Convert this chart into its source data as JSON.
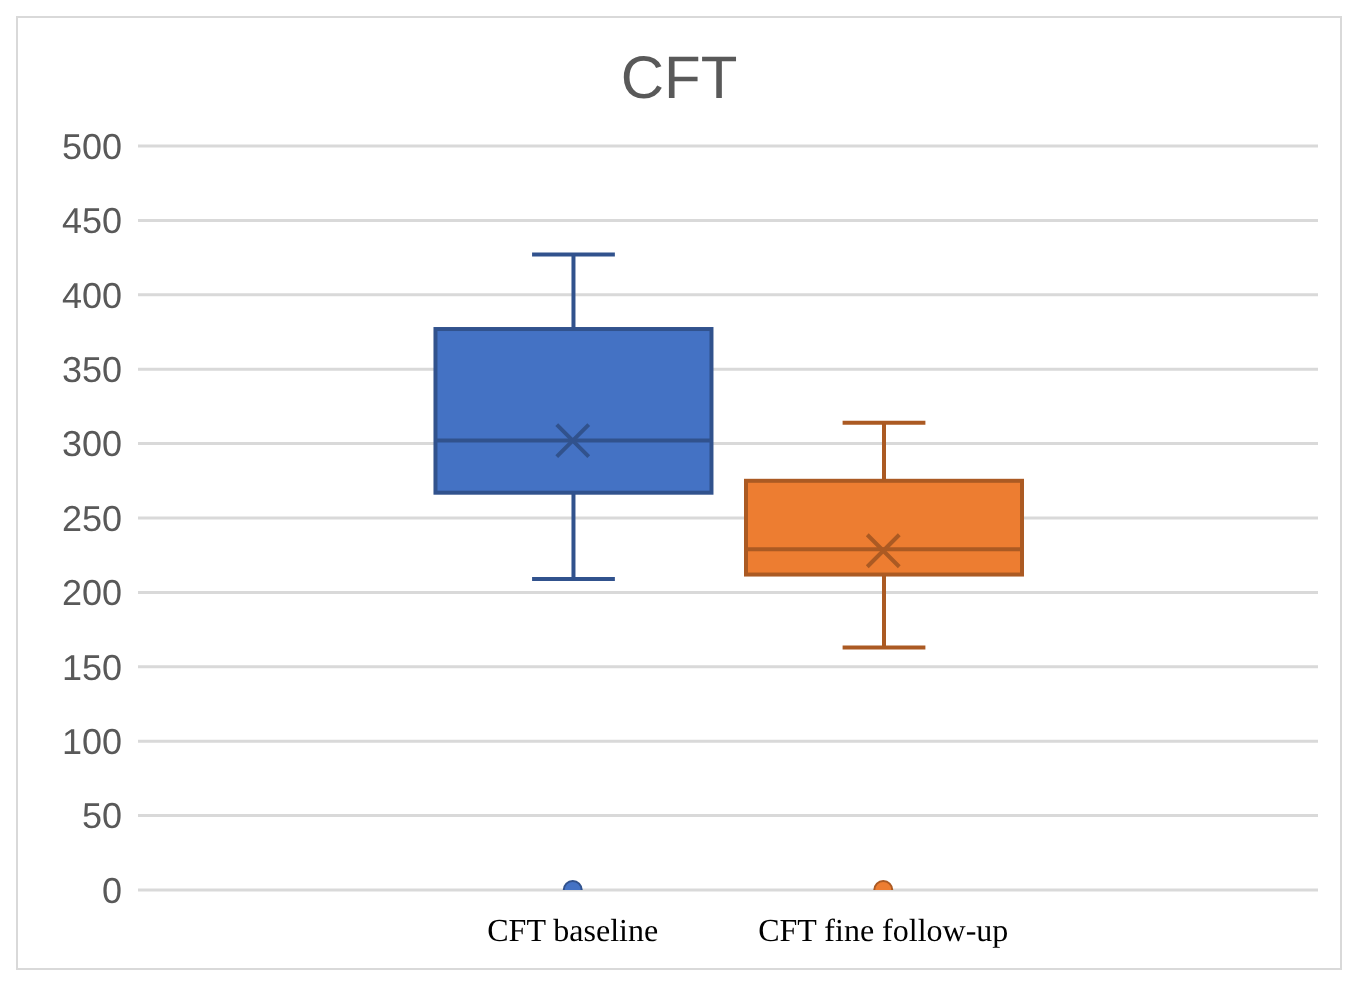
{
  "chart_data": {
    "type": "box",
    "title": "CFT",
    "categories": [
      "CFT baseline",
      "CFT fine follow-up"
    ],
    "colors": [
      "#4472c4",
      "#ed7d31"
    ],
    "boxes": [
      {
        "low": 209,
        "q1": 267,
        "median": 302,
        "q3": 377,
        "high": 427,
        "mean": 302,
        "outliers": [
          0
        ]
      },
      {
        "low": 163,
        "q1": 212,
        "median": 229,
        "q3": 275,
        "high": 314,
        "mean": 228,
        "outliers": [
          0
        ]
      }
    ],
    "ylim": [
      0,
      500
    ],
    "yticks": [
      0,
      50,
      100,
      150,
      200,
      250,
      300,
      350,
      400,
      450,
      500
    ],
    "grid": "y"
  }
}
